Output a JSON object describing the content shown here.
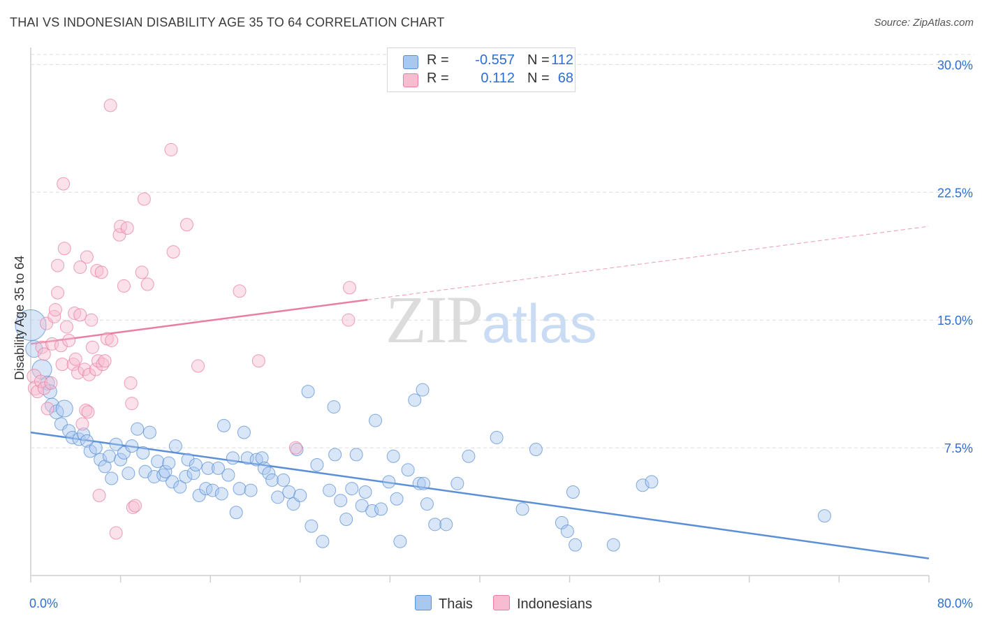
{
  "title": "THAI VS INDONESIAN DISABILITY AGE 35 TO 64 CORRELATION CHART",
  "source": "Source: ZipAtlas.com",
  "watermark": {
    "zip": "ZIP",
    "atlas": "atlas"
  },
  "legend": [
    {
      "r_label": "R =",
      "r_value": "-0.557",
      "n_label": "N =",
      "n_value": "112",
      "color": "#a9c8f0",
      "border": "#5b8fd6"
    },
    {
      "r_label": "R =",
      "r_value": "0.112",
      "n_label": "N =",
      "n_value": "68",
      "color": "#f7bcd0",
      "border": "#e87fa3"
    }
  ],
  "bottom_legend": [
    "Thais",
    "Indonesians"
  ],
  "chart_data": {
    "type": "scatter",
    "title": "THAI VS INDONESIAN DISABILITY AGE 35 TO 64 CORRELATION CHART",
    "xlabel": "",
    "ylabel": "Disability Age 35 to 64",
    "xlim": [
      0,
      80
    ],
    "ylim": [
      0,
      31
    ],
    "x_tick_labels": [
      "0.0%",
      "80.0%"
    ],
    "y_ticks": [
      7.5,
      15.0,
      22.5,
      30.0
    ],
    "y_tick_labels": [
      "7.5%",
      "15.0%",
      "22.5%",
      "30.0%"
    ],
    "grid": true,
    "legend_position": "top-center",
    "series": [
      {
        "name": "Thais",
        "color": "#5b8fd6",
        "fill": "#a9c8f0",
        "trend": {
          "x0": 0,
          "y0": 8.4,
          "x1": 80,
          "y1": 1.0,
          "dashed_from": null
        },
        "points": [
          [
            0.0,
            14.7,
            22
          ],
          [
            0.3,
            13.3,
            12
          ],
          [
            1.0,
            12.1,
            14
          ],
          [
            1.5,
            11.3,
            10
          ],
          [
            1.7,
            10.8,
            10
          ],
          [
            1.9,
            10.0,
            10
          ],
          [
            2.3,
            9.6,
            10
          ],
          [
            3.0,
            9.8,
            12
          ],
          [
            2.7,
            8.9,
            9
          ],
          [
            3.4,
            8.5,
            9
          ],
          [
            3.7,
            8.1,
            9
          ],
          [
            4.3,
            8.0,
            9
          ],
          [
            4.7,
            8.3,
            9
          ],
          [
            5.0,
            7.9,
            9
          ],
          [
            5.3,
            7.3,
            9
          ],
          [
            5.8,
            7.5,
            9
          ],
          [
            6.2,
            6.8,
            9
          ],
          [
            6.6,
            6.4,
            9
          ],
          [
            7.0,
            7.0,
            9
          ],
          [
            7.2,
            5.7,
            9
          ],
          [
            7.6,
            7.7,
            9
          ],
          [
            8.0,
            6.8,
            9
          ],
          [
            8.3,
            7.2,
            9
          ],
          [
            8.7,
            6.0,
            9
          ],
          [
            9.0,
            7.6,
            9
          ],
          [
            9.5,
            8.6,
            9
          ],
          [
            10.0,
            7.2,
            9
          ],
          [
            10.2,
            6.1,
            9
          ],
          [
            10.6,
            8.4,
            9
          ],
          [
            11.0,
            5.8,
            9
          ],
          [
            11.3,
            6.7,
            9
          ],
          [
            11.8,
            5.9,
            9
          ],
          [
            12.0,
            6.1,
            9
          ],
          [
            12.3,
            6.6,
            9
          ],
          [
            12.6,
            5.5,
            9
          ],
          [
            12.9,
            7.6,
            9
          ],
          [
            13.3,
            5.2,
            9
          ],
          [
            13.8,
            5.8,
            9
          ],
          [
            14.0,
            6.8,
            9
          ],
          [
            14.5,
            6.0,
            9
          ],
          [
            14.7,
            6.5,
            9
          ],
          [
            15.0,
            4.7,
            9
          ],
          [
            15.6,
            5.1,
            9
          ],
          [
            15.8,
            6.3,
            9
          ],
          [
            16.2,
            5.0,
            9
          ],
          [
            16.7,
            6.3,
            9
          ],
          [
            17.0,
            4.8,
            9
          ],
          [
            17.2,
            8.8,
            9
          ],
          [
            17.6,
            5.9,
            9
          ],
          [
            18.0,
            6.9,
            9
          ],
          [
            18.3,
            3.7,
            9
          ],
          [
            18.6,
            5.1,
            9
          ],
          [
            19.0,
            8.4,
            9
          ],
          [
            19.3,
            6.9,
            9
          ],
          [
            19.6,
            5.0,
            9
          ],
          [
            20.1,
            6.8,
            9
          ],
          [
            20.6,
            6.9,
            9
          ],
          [
            20.8,
            6.3,
            9
          ],
          [
            21.2,
            6.0,
            9
          ],
          [
            21.5,
            5.6,
            9
          ],
          [
            22.0,
            4.6,
            9
          ],
          [
            22.5,
            5.6,
            9
          ],
          [
            23.0,
            4.9,
            9
          ],
          [
            23.4,
            4.2,
            9
          ],
          [
            23.7,
            7.4,
            9
          ],
          [
            24.0,
            4.7,
            9
          ],
          [
            24.7,
            10.8,
            9
          ],
          [
            25.0,
            2.9,
            9
          ],
          [
            25.5,
            6.5,
            9
          ],
          [
            26.0,
            2.0,
            9
          ],
          [
            26.6,
            5.0,
            9
          ],
          [
            27.0,
            9.9,
            9
          ],
          [
            27.1,
            7.1,
            9
          ],
          [
            27.6,
            4.4,
            9
          ],
          [
            28.1,
            3.3,
            9
          ],
          [
            28.6,
            5.1,
            9
          ],
          [
            29.0,
            7.1,
            9
          ],
          [
            29.5,
            4.1,
            9
          ],
          [
            29.8,
            4.9,
            9
          ],
          [
            30.4,
            3.8,
            9
          ],
          [
            30.7,
            9.1,
            9
          ],
          [
            31.2,
            3.9,
            9
          ],
          [
            31.9,
            5.5,
            9
          ],
          [
            32.3,
            7.0,
            9
          ],
          [
            32.6,
            4.5,
            9
          ],
          [
            32.9,
            2.0,
            9
          ],
          [
            33.6,
            6.2,
            9
          ],
          [
            34.2,
            10.3,
            9
          ],
          [
            34.6,
            5.4,
            9
          ],
          [
            34.9,
            10.9,
            9
          ],
          [
            35.0,
            5.4,
            9
          ],
          [
            35.3,
            4.2,
            9
          ],
          [
            36.0,
            3.0,
            9
          ],
          [
            37.0,
            3.0,
            9
          ],
          [
            38.0,
            5.4,
            9
          ],
          [
            39.0,
            7.0,
            9
          ],
          [
            41.5,
            8.1,
            9
          ],
          [
            43.8,
            3.9,
            9
          ],
          [
            45.0,
            7.4,
            9
          ],
          [
            47.3,
            3.1,
            9
          ],
          [
            47.8,
            2.6,
            9
          ],
          [
            48.3,
            4.9,
            9
          ],
          [
            48.5,
            1.8,
            9
          ],
          [
            51.9,
            1.8,
            9
          ],
          [
            54.5,
            5.3,
            9
          ],
          [
            55.3,
            5.5,
            9
          ],
          [
            70.7,
            3.5,
            9
          ]
        ]
      },
      {
        "name": "Indonesians",
        "color": "#e87fa3",
        "fill": "#f7bcd0",
        "trend": {
          "x0": 0,
          "y0": 13.6,
          "x1": 80,
          "y1": 20.5,
          "dashed_from": 30
        },
        "points": [
          [
            0.3,
            11.7,
            10
          ],
          [
            0.4,
            11.0,
            10
          ],
          [
            0.6,
            10.8,
            9
          ],
          [
            0.9,
            11.4,
            9
          ],
          [
            1.0,
            13.4,
            9
          ],
          [
            1.2,
            13.0,
            9
          ],
          [
            1.2,
            11.0,
            9
          ],
          [
            1.4,
            14.8,
            9
          ],
          [
            1.5,
            9.8,
            9
          ],
          [
            1.8,
            11.3,
            9
          ],
          [
            1.9,
            13.6,
            9
          ],
          [
            2.1,
            15.2,
            9
          ],
          [
            2.2,
            15.6,
            9
          ],
          [
            2.4,
            16.6,
            9
          ],
          [
            2.4,
            18.2,
            9
          ],
          [
            2.7,
            13.5,
            9
          ],
          [
            2.8,
            12.4,
            9
          ],
          [
            2.9,
            23.0,
            9
          ],
          [
            3.0,
            19.2,
            9
          ],
          [
            3.2,
            14.6,
            9
          ],
          [
            3.4,
            13.8,
            9
          ],
          [
            3.8,
            12.4,
            9
          ],
          [
            3.9,
            15.4,
            9
          ],
          [
            4.0,
            12.7,
            9
          ],
          [
            4.2,
            11.9,
            9
          ],
          [
            4.4,
            18.1,
            9
          ],
          [
            4.4,
            15.3,
            9
          ],
          [
            4.6,
            8.9,
            9
          ],
          [
            4.8,
            12.1,
            9
          ],
          [
            4.9,
            9.7,
            9
          ],
          [
            5.0,
            18.7,
            9
          ],
          [
            5.1,
            9.6,
            9
          ],
          [
            5.2,
            11.8,
            9
          ],
          [
            5.4,
            15.0,
            9
          ],
          [
            5.5,
            13.4,
            9
          ],
          [
            5.8,
            12.1,
            9
          ],
          [
            5.9,
            17.9,
            9
          ],
          [
            6.0,
            12.6,
            9
          ],
          [
            6.1,
            4.7,
            9
          ],
          [
            6.3,
            17.8,
            9
          ],
          [
            6.4,
            12.4,
            9
          ],
          [
            6.6,
            12.6,
            9
          ],
          [
            6.8,
            13.9,
            9
          ],
          [
            7.1,
            27.6,
            9
          ],
          [
            7.2,
            13.8,
            9
          ],
          [
            7.6,
            2.5,
            9
          ],
          [
            7.9,
            20.0,
            9
          ],
          [
            8.0,
            20.5,
            9
          ],
          [
            8.3,
            17.0,
            9
          ],
          [
            8.6,
            20.4,
            9
          ],
          [
            8.9,
            11.3,
            9
          ],
          [
            9.0,
            10.1,
            9
          ],
          [
            9.1,
            4.0,
            9
          ],
          [
            9.3,
            4.1,
            9
          ],
          [
            9.9,
            17.8,
            9
          ],
          [
            10.1,
            22.1,
            9
          ],
          [
            10.4,
            17.1,
            9
          ],
          [
            12.5,
            25.0,
            9
          ],
          [
            12.7,
            19.0,
            9
          ],
          [
            13.9,
            20.6,
            9
          ],
          [
            14.9,
            12.3,
            9
          ],
          [
            18.6,
            16.7,
            9
          ],
          [
            20.3,
            12.6,
            9
          ],
          [
            23.6,
            7.5,
            9
          ],
          [
            28.4,
            16.9,
            9
          ],
          [
            28.3,
            15.0,
            9
          ]
        ]
      }
    ]
  }
}
